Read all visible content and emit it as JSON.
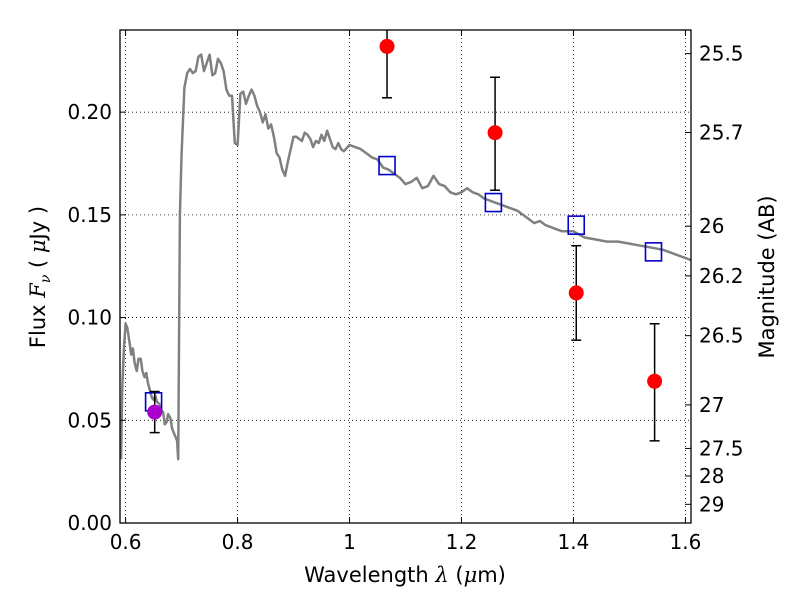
{
  "chart_data": {
    "type": "scatter",
    "xlabel": {
      "prefix": "Wavelength  ",
      "symbol": "λ",
      "units": " (",
      "mu": "μ",
      "unit_tail": "m)"
    },
    "ylabel": {
      "prefix": "Flux  ",
      "symbol": "F",
      "sub": "ν",
      "units": "  ( ",
      "mu": "μ",
      "unit_tail": "Jy )"
    },
    "y2label": "Magnitude (AB)",
    "xlim": [
      0.59,
      1.61
    ],
    "ylim": [
      0.0,
      0.24
    ],
    "grid": true,
    "grid_style": "dotted",
    "x_ticks": [
      {
        "value": 0.6,
        "label": "0.6"
      },
      {
        "value": 0.8,
        "label": "0.8"
      },
      {
        "value": 1.0,
        "label": "1"
      },
      {
        "value": 1.2,
        "label": "1.2"
      },
      {
        "value": 1.4,
        "label": "1.4"
      },
      {
        "value": 1.6,
        "label": "1.6"
      }
    ],
    "y_ticks": [
      {
        "value": 0.0,
        "label": "0.00"
      },
      {
        "value": 0.05,
        "label": "0.05"
      },
      {
        "value": 0.1,
        "label": "0.10"
      },
      {
        "value": 0.15,
        "label": "0.15"
      },
      {
        "value": 0.2,
        "label": "0.20"
      }
    ],
    "y2_ticks": [
      {
        "flux": 0.2285,
        "label": "25.5"
      },
      {
        "flux": 0.1901,
        "label": "25.7"
      },
      {
        "flux": 0.1445,
        "label": "26"
      },
      {
        "flux": 0.1203,
        "label": "26.2"
      },
      {
        "flux": 0.0912,
        "label": "26.5"
      },
      {
        "flux": 0.0575,
        "label": "27"
      },
      {
        "flux": 0.0363,
        "label": "27.5"
      },
      {
        "flux": 0.0229,
        "label": "28"
      },
      {
        "flux": 0.0091,
        "label": "29"
      }
    ],
    "series": [
      {
        "kind": "line",
        "color": "#808080",
        "points": [
          [
            0.592,
            0.031
          ],
          [
            0.594,
            0.065
          ],
          [
            0.597,
            0.085
          ],
          [
            0.6,
            0.097
          ],
          [
            0.603,
            0.095
          ],
          [
            0.607,
            0.088
          ],
          [
            0.61,
            0.082
          ],
          [
            0.613,
            0.085
          ],
          [
            0.616,
            0.078
          ],
          [
            0.62,
            0.074
          ],
          [
            0.623,
            0.08
          ],
          [
            0.627,
            0.08
          ],
          [
            0.63,
            0.074
          ],
          [
            0.634,
            0.071
          ],
          [
            0.637,
            0.073
          ],
          [
            0.64,
            0.068
          ],
          [
            0.643,
            0.065
          ],
          [
            0.647,
            0.061
          ],
          [
            0.65,
            0.06
          ],
          [
            0.653,
            0.062
          ],
          [
            0.656,
            0.059
          ],
          [
            0.66,
            0.058
          ],
          [
            0.663,
            0.055
          ],
          [
            0.667,
            0.054
          ],
          [
            0.67,
            0.048
          ],
          [
            0.673,
            0.049
          ],
          [
            0.676,
            0.053
          ],
          [
            0.68,
            0.051
          ],
          [
            0.683,
            0.046
          ],
          [
            0.686,
            0.044
          ],
          [
            0.689,
            0.042
          ],
          [
            0.692,
            0.04
          ],
          [
            0.694,
            0.031
          ],
          [
            0.697,
            0.15
          ],
          [
            0.7,
            0.18
          ],
          [
            0.705,
            0.212
          ],
          [
            0.71,
            0.219
          ],
          [
            0.715,
            0.221
          ],
          [
            0.72,
            0.219
          ],
          [
            0.725,
            0.22
          ],
          [
            0.73,
            0.227
          ],
          [
            0.735,
            0.228
          ],
          [
            0.74,
            0.22
          ],
          [
            0.745,
            0.224
          ],
          [
            0.75,
            0.228
          ],
          [
            0.755,
            0.218
          ],
          [
            0.76,
            0.219
          ],
          [
            0.765,
            0.226
          ],
          [
            0.77,
            0.224
          ],
          [
            0.775,
            0.22
          ],
          [
            0.78,
            0.211
          ],
          [
            0.785,
            0.208
          ],
          [
            0.79,
            0.208
          ],
          [
            0.795,
            0.185
          ],
          [
            0.8,
            0.184
          ],
          [
            0.805,
            0.209
          ],
          [
            0.81,
            0.21
          ],
          [
            0.815,
            0.204
          ],
          [
            0.82,
            0.208
          ],
          [
            0.825,
            0.211
          ],
          [
            0.83,
            0.208
          ],
          [
            0.835,
            0.203
          ],
          [
            0.84,
            0.2
          ],
          [
            0.845,
            0.195
          ],
          [
            0.85,
            0.199
          ],
          [
            0.855,
            0.192
          ],
          [
            0.86,
            0.194
          ],
          [
            0.865,
            0.188
          ],
          [
            0.87,
            0.18
          ],
          [
            0.875,
            0.178
          ],
          [
            0.88,
            0.172
          ],
          [
            0.885,
            0.169
          ],
          [
            0.89,
            0.176
          ],
          [
            0.895,
            0.182
          ],
          [
            0.9,
            0.188
          ],
          [
            0.905,
            0.188
          ],
          [
            0.91,
            0.187
          ],
          [
            0.915,
            0.186
          ],
          [
            0.92,
            0.19
          ],
          [
            0.925,
            0.189
          ],
          [
            0.93,
            0.187
          ],
          [
            0.935,
            0.183
          ],
          [
            0.94,
            0.186
          ],
          [
            0.945,
            0.185
          ],
          [
            0.95,
            0.189
          ],
          [
            0.955,
            0.186
          ],
          [
            0.96,
            0.191
          ],
          [
            0.965,
            0.187
          ],
          [
            0.97,
            0.183
          ],
          [
            0.975,
            0.182
          ],
          [
            0.98,
            0.185
          ],
          [
            0.985,
            0.182
          ],
          [
            0.99,
            0.181
          ],
          [
            1.0,
            0.184
          ],
          [
            1.01,
            0.183
          ],
          [
            1.02,
            0.182
          ],
          [
            1.03,
            0.18
          ],
          [
            1.04,
            0.178
          ],
          [
            1.05,
            0.177
          ],
          [
            1.06,
            0.173
          ],
          [
            1.07,
            0.172
          ],
          [
            1.08,
            0.17
          ],
          [
            1.09,
            0.168
          ],
          [
            1.1,
            0.165
          ],
          [
            1.11,
            0.166
          ],
          [
            1.12,
            0.168
          ],
          [
            1.13,
            0.163
          ],
          [
            1.14,
            0.164
          ],
          [
            1.15,
            0.169
          ],
          [
            1.16,
            0.165
          ],
          [
            1.17,
            0.164
          ],
          [
            1.18,
            0.161
          ],
          [
            1.19,
            0.16
          ],
          [
            1.2,
            0.161
          ],
          [
            1.21,
            0.163
          ],
          [
            1.22,
            0.161
          ],
          [
            1.23,
            0.16
          ],
          [
            1.24,
            0.158
          ],
          [
            1.25,
            0.157
          ],
          [
            1.26,
            0.156
          ],
          [
            1.27,
            0.155
          ],
          [
            1.28,
            0.154
          ],
          [
            1.29,
            0.153
          ],
          [
            1.3,
            0.152
          ],
          [
            1.31,
            0.15
          ],
          [
            1.32,
            0.148
          ],
          [
            1.33,
            0.146
          ],
          [
            1.34,
            0.147
          ],
          [
            1.35,
            0.145
          ],
          [
            1.36,
            0.144
          ],
          [
            1.37,
            0.143
          ],
          [
            1.38,
            0.142
          ],
          [
            1.39,
            0.142
          ],
          [
            1.4,
            0.142
          ],
          [
            1.42,
            0.139
          ],
          [
            1.44,
            0.138
          ],
          [
            1.46,
            0.137
          ],
          [
            1.48,
            0.137
          ],
          [
            1.5,
            0.136
          ],
          [
            1.52,
            0.135
          ],
          [
            1.54,
            0.134
          ],
          [
            1.56,
            0.133
          ],
          [
            1.58,
            0.131
          ],
          [
            1.6,
            0.129
          ],
          [
            1.61,
            0.128
          ]
        ]
      },
      {
        "kind": "open-square",
        "color": "#0000cc",
        "points": [
          [
            0.65,
            0.059
          ],
          [
            1.067,
            0.174
          ],
          [
            1.257,
            0.156
          ],
          [
            1.405,
            0.145
          ],
          [
            1.543,
            0.132
          ]
        ]
      },
      {
        "kind": "errorbar-points",
        "color": "#ff0000",
        "points": [
          {
            "x": 1.067,
            "y": 0.232,
            "ylo": 0.207,
            "yhi": 0.246
          },
          {
            "x": 1.26,
            "y": 0.19,
            "ylo": 0.162,
            "yhi": 0.217
          },
          {
            "x": 1.405,
            "y": 0.112,
            "ylo": 0.089,
            "yhi": 0.135
          },
          {
            "x": 1.545,
            "y": 0.069,
            "ylo": 0.04,
            "yhi": 0.097
          }
        ]
      },
      {
        "kind": "errorbar-points",
        "color": "#aa00cc",
        "points": [
          {
            "x": 0.652,
            "y": 0.054,
            "ylo": 0.044,
            "yhi": 0.064
          }
        ]
      }
    ]
  }
}
